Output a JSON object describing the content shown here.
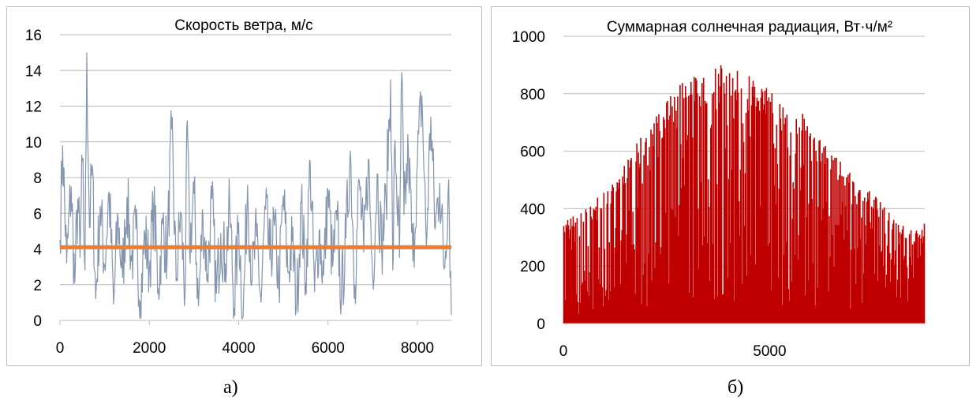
{
  "captions": {
    "a": "а)",
    "b": "б)"
  },
  "colors": {
    "wind": "#8496b0",
    "mean": "#ed7d31",
    "radiation": "#c00000"
  },
  "chart_data": [
    {
      "type": "line",
      "title": "Скорость ветра, м/с",
      "xlim": [
        0,
        8760
      ],
      "ylim": [
        0,
        16
      ],
      "xticks": [
        "0",
        "2000",
        "4000",
        "6000",
        "8000"
      ],
      "yticks": [
        "0",
        "2",
        "4",
        "6",
        "8",
        "10",
        "12",
        "14",
        "16"
      ],
      "grid": "horizontal",
      "series": [
        {
          "x": [
            0,
            60,
            150,
            250,
            330,
            400,
            450,
            500,
            560,
            600,
            660,
            720,
            800,
            900,
            1000,
            1100,
            1200,
            1300,
            1400,
            1500,
            1600,
            1700,
            1800,
            1900,
            2000,
            2100,
            2200,
            2300,
            2400,
            2500,
            2600,
            2700,
            2800,
            2850,
            2900,
            3000,
            3100,
            3200,
            3300,
            3400,
            3500,
            3600,
            3700,
            3800,
            3900,
            4000,
            4100,
            4200,
            4300,
            4400,
            4500,
            4600,
            4700,
            4800,
            4900,
            5000,
            5100,
            5200,
            5300,
            5400,
            5500,
            5600,
            5700,
            5800,
            5900,
            6000,
            6100,
            6200,
            6300,
            6400,
            6500,
            6600,
            6700,
            6800,
            6900,
            7000,
            7100,
            7200,
            7300,
            7400,
            7450,
            7500,
            7600,
            7650,
            7700,
            7800,
            7900,
            8000,
            8100,
            8200,
            8300,
            8400,
            8500,
            8600,
            8700,
            8760
          ],
          "y": [
            4.5,
            9.8,
            3.2,
            7.5,
            2.1,
            6.8,
            3.5,
            8.9,
            2.8,
            15.0,
            5.2,
            8.7,
            1.2,
            6.4,
            3.1,
            7.2,
            0.9,
            5.8,
            2.4,
            6.9,
            3.3,
            5.1,
            1.1,
            4.8,
            2.9,
            6.5,
            1.8,
            5.4,
            3.6,
            10.7,
            2.2,
            6.1,
            1.4,
            11.2,
            4.0,
            7.1,
            0.8,
            5.9,
            2.6,
            6.8,
            1.5,
            4.9,
            3.2,
            6.3,
            0.7,
            5.5,
            0.2,
            7.6,
            2.3,
            4.7,
            1.0,
            6.2,
            3.4,
            5.3,
            1.9,
            7.0,
            2.7,
            4.4,
            0.9,
            6.6,
            2.1,
            8.9,
            1.6,
            5.0,
            2.5,
            7.3,
            3.0,
            5.6,
            1.3,
            4.6,
            9.5,
            2.0,
            7.8,
            3.8,
            9.0,
            2.5,
            8.2,
            4.1,
            6.7,
            13.5,
            2.8,
            10.1,
            3.5,
            13.9,
            5.9,
            9.4,
            3.3,
            8.8,
            12.6,
            4.2,
            11.4,
            5.1,
            7.7,
            2.9,
            7.9,
            0.3
          ]
        },
        {
          "x": [
            0,
            8760
          ],
          "y": [
            4.1,
            4.1
          ]
        }
      ]
    },
    {
      "type": "area",
      "title": "Суммарная солнечная радиация, Вт·ч/м²",
      "xlim": [
        0,
        8760
      ],
      "ylim": [
        0,
        1000
      ],
      "xticks": [
        "0",
        "5000"
      ],
      "yticks": [
        "0",
        "200",
        "400",
        "600",
        "800",
        "1000"
      ],
      "grid": "horizontal",
      "envelope": {
        "x": [
          0,
          500,
          1000,
          1500,
          2000,
          2500,
          3000,
          3500,
          3900,
          4500,
          5000,
          5500,
          6000,
          6500,
          7000,
          7500,
          8000,
          8500,
          8760
        ],
        "y": [
          370,
          400,
          460,
          560,
          680,
          780,
          860,
          890,
          920,
          870,
          820,
          780,
          700,
          610,
          530,
          460,
          370,
          320,
          350
        ]
      }
    }
  ]
}
